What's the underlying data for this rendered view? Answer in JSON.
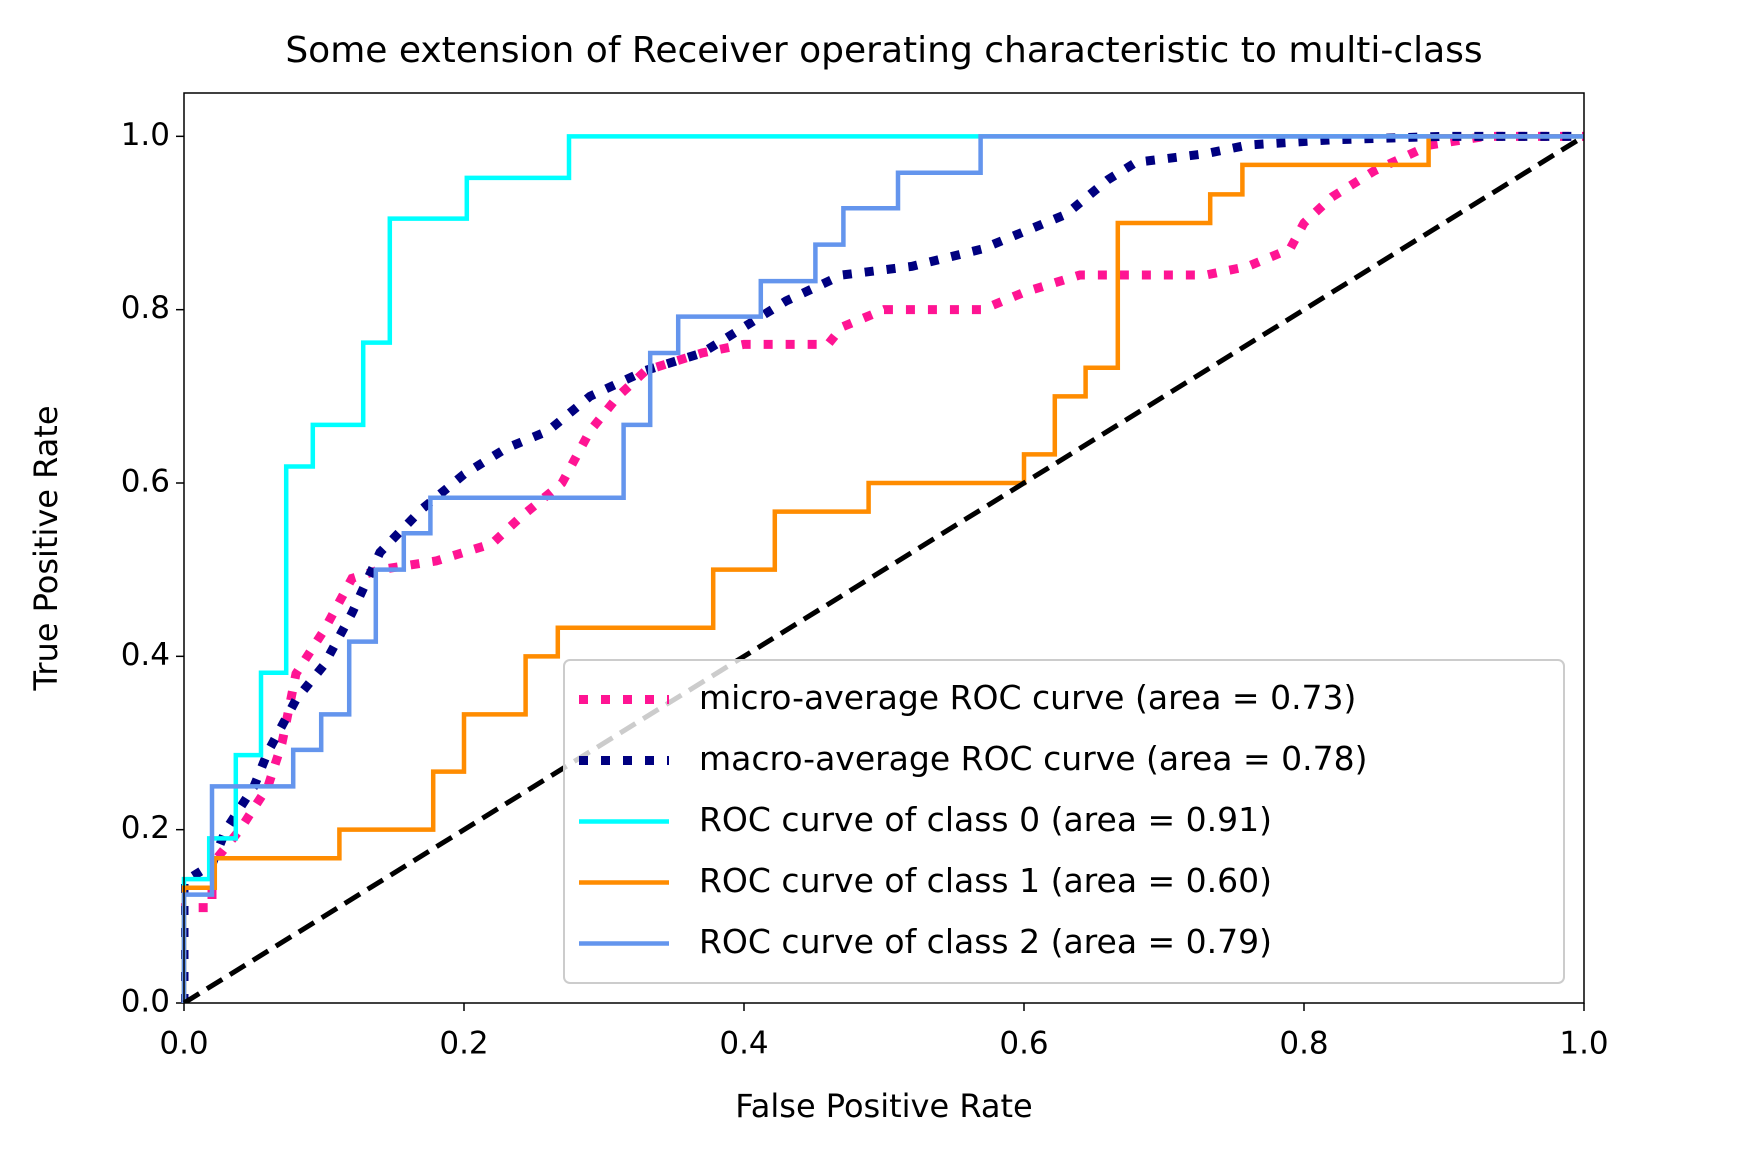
{
  "chart_data": {
    "type": "line",
    "title": "Some extension of Receiver operating characteristic to multi-class",
    "xlabel": "False Positive Rate",
    "ylabel": "True Positive Rate",
    "xlim": [
      0,
      1
    ],
    "ylim": [
      0,
      1.05
    ],
    "xticks": [
      {
        "value": 0,
        "label": "0.0"
      },
      0.2,
      0.4,
      0.6,
      0.8,
      {
        "value": 1,
        "label": "1.0"
      }
    ],
    "yticks": [
      {
        "value": 0,
        "label": "0.0"
      },
      0.2,
      0.4,
      0.6,
      0.8,
      {
        "value": 1,
        "label": "1.0"
      }
    ],
    "grid": false,
    "legend": "lower right",
    "series": [
      {
        "name": "micro-average ROC curve (area = 0.73)",
        "color": "#ff1493",
        "linestyle": "dotted",
        "x": [
          0,
          0,
          0.02,
          0.02,
          0.04,
          0.06,
          0.07,
          0.08,
          0.1,
          0.12,
          0.14,
          0.18,
          0.22,
          0.24,
          0.27,
          0.29,
          0.31,
          0.33,
          0.37,
          0.4,
          0.46,
          0.47,
          0.5,
          0.57,
          0.6,
          0.64,
          0.73,
          0.76,
          0.79,
          0.8,
          0.82,
          0.85,
          0.89,
          0.93,
          1
        ],
        "values": [
          0,
          0.11,
          0.11,
          0.16,
          0.2,
          0.25,
          0.3,
          0.38,
          0.43,
          0.49,
          0.5,
          0.51,
          0.53,
          0.56,
          0.6,
          0.66,
          0.7,
          0.73,
          0.75,
          0.76,
          0.76,
          0.78,
          0.8,
          0.8,
          0.82,
          0.84,
          0.84,
          0.85,
          0.87,
          0.9,
          0.93,
          0.96,
          0.99,
          1,
          1
        ]
      },
      {
        "name": "macro-average ROC curve (area = 0.78)",
        "color": "#000080",
        "linestyle": "dotted",
        "x": [
          0,
          0,
          0.02,
          0.03,
          0.05,
          0.06,
          0.08,
          0.1,
          0.12,
          0.14,
          0.17,
          0.2,
          0.23,
          0.26,
          0.29,
          0.33,
          0.37,
          0.4,
          0.43,
          0.47,
          0.52,
          0.57,
          0.6,
          0.63,
          0.66,
          0.68,
          0.73,
          0.76,
          0.82,
          0.9,
          1
        ],
        "values": [
          0,
          0.14,
          0.16,
          0.2,
          0.25,
          0.29,
          0.35,
          0.39,
          0.45,
          0.52,
          0.57,
          0.61,
          0.64,
          0.66,
          0.7,
          0.73,
          0.75,
          0.78,
          0.81,
          0.84,
          0.85,
          0.87,
          0.89,
          0.91,
          0.95,
          0.97,
          0.98,
          0.99,
          0.996,
          1,
          1
        ]
      },
      {
        "name": "ROC curve of class 0 (area = 0.91)",
        "color": "#00ffff",
        "linestyle": "solid",
        "x": [
          0,
          0,
          0.018,
          0.018,
          0.037,
          0.037,
          0.055,
          0.055,
          0.073,
          0.073,
          0.092,
          0.092,
          0.128,
          0.128,
          0.147,
          0.147,
          0.202,
          0.202,
          0.275,
          0.275,
          1
        ],
        "values": [
          0,
          0.143,
          0.143,
          0.19,
          0.19,
          0.286,
          0.286,
          0.381,
          0.381,
          0.619,
          0.619,
          0.667,
          0.667,
          0.762,
          0.762,
          0.905,
          0.905,
          0.952,
          0.952,
          1,
          1
        ]
      },
      {
        "name": "ROC curve of class 1 (area = 0.60)",
        "color": "#ff8c00",
        "linestyle": "solid",
        "x": [
          0,
          0,
          0.022,
          0.022,
          0.111,
          0.111,
          0.178,
          0.178,
          0.2,
          0.2,
          0.244,
          0.244,
          0.267,
          0.267,
          0.378,
          0.378,
          0.422,
          0.422,
          0.489,
          0.489,
          0.6,
          0.6,
          0.622,
          0.622,
          0.644,
          0.644,
          0.667,
          0.667,
          0.733,
          0.733,
          0.756,
          0.756,
          0.889,
          0.889,
          1
        ],
        "values": [
          0,
          0.133,
          0.133,
          0.167,
          0.167,
          0.2,
          0.2,
          0.267,
          0.267,
          0.333,
          0.333,
          0.4,
          0.4,
          0.433,
          0.433,
          0.5,
          0.5,
          0.567,
          0.567,
          0.6,
          0.6,
          0.633,
          0.633,
          0.7,
          0.7,
          0.733,
          0.733,
          0.9,
          0.9,
          0.933,
          0.933,
          0.967,
          0.967,
          1,
          1
        ]
      },
      {
        "name": "ROC curve of class 2 (area = 0.79)",
        "color": "#6495ed",
        "linestyle": "solid",
        "x": [
          0,
          0,
          0.02,
          0.02,
          0.078,
          0.078,
          0.098,
          0.098,
          0.118,
          0.118,
          0.137,
          0.137,
          0.157,
          0.157,
          0.176,
          0.176,
          0.314,
          0.314,
          0.333,
          0.333,
          0.353,
          0.353,
          0.412,
          0.412,
          0.451,
          0.451,
          0.471,
          0.471,
          0.51,
          0.51,
          0.569,
          0.569,
          1
        ],
        "values": [
          0,
          0.125,
          0.125,
          0.25,
          0.25,
          0.292,
          0.292,
          0.333,
          0.333,
          0.417,
          0.417,
          0.5,
          0.5,
          0.542,
          0.542,
          0.583,
          0.583,
          0.667,
          0.667,
          0.75,
          0.75,
          0.792,
          0.792,
          0.833,
          0.833,
          0.875,
          0.875,
          0.917,
          0.917,
          0.958,
          0.958,
          1,
          1
        ]
      },
      {
        "color": "#000000",
        "linestyle": "dashed",
        "x": [
          0,
          1
        ],
        "values": [
          0,
          1
        ]
      }
    ]
  }
}
